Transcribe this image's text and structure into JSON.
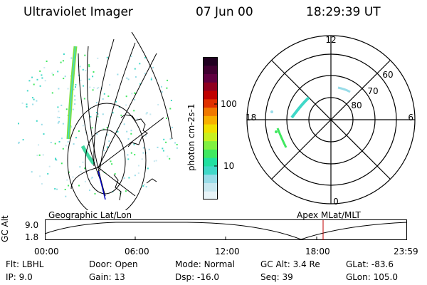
{
  "header": {
    "title": "Ultraviolet Imager",
    "date": "07 Jun 00",
    "time": "18:29:39 UT"
  },
  "colorbar": {
    "label": "photon cm-2s-1",
    "ticks": [
      "100",
      "10"
    ],
    "colors": [
      "#e8f4f8",
      "#c8e8f0",
      "#98dce8",
      "#40d8c8",
      "#20e0a0",
      "#40e860",
      "#80f040",
      "#c8f020",
      "#f0e000",
      "#f8b000",
      "#f07800",
      "#e03000",
      "#c00000",
      "#900020",
      "#600040",
      "#400030",
      "#200020"
    ]
  },
  "geo_panel": {
    "label": "Geographic Lat/Lon"
  },
  "polar_panel": {
    "label": "Apex MLat/MLT",
    "mlt_labels": [
      "12",
      "18",
      "6",
      "0"
    ],
    "lat_labels": [
      "60",
      "70",
      "80"
    ]
  },
  "altitude_plot": {
    "ylabel": "GC Alt",
    "y_ticks": [
      "9.0",
      "1.8"
    ],
    "x_ticks": [
      "00:00",
      "06:00",
      "12:00",
      "18:00",
      "23:59"
    ],
    "marker_time": "18:29",
    "marker_color": "#c00000"
  },
  "info": {
    "row1": [
      {
        "label": "Flt:",
        "value": "LBHL"
      },
      {
        "label": "Door:",
        "value": "Open"
      },
      {
        "label": "Mode:",
        "value": "Normal"
      },
      {
        "label": "GC Alt:",
        "value": "3.4 Re"
      },
      {
        "label": "GLat:",
        "value": "-83.6"
      }
    ],
    "row2": [
      {
        "label": "IP:",
        "value": "9.0"
      },
      {
        "label": "Gain:",
        "value": "13"
      },
      {
        "label": "Dsp:",
        "value": "-16.0"
      },
      {
        "label": "Seq:",
        "value": "39"
      },
      {
        "label": "GLon:",
        "value": "105.0"
      }
    ]
  }
}
